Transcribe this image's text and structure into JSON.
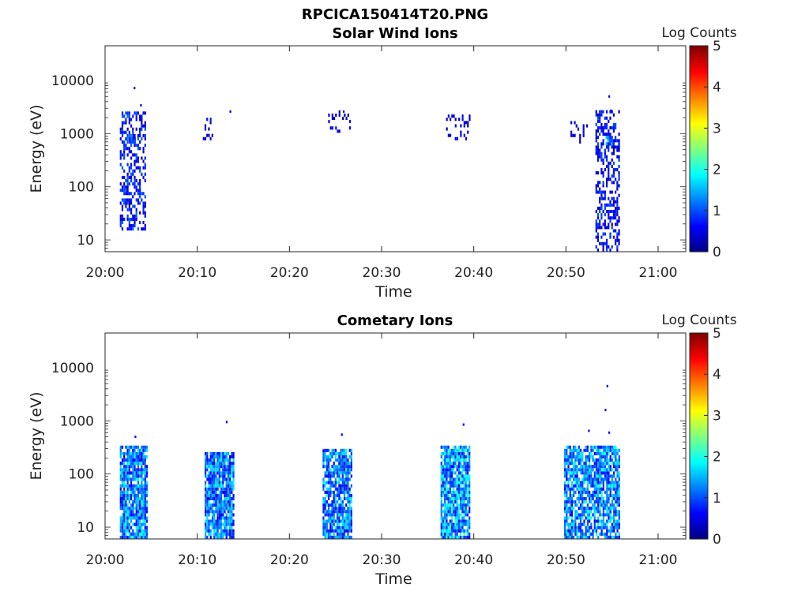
{
  "figure": {
    "title": "RPCICA150414T20.PNG"
  },
  "chart_data": [
    {
      "type": "heatmap",
      "title": "Solar Wind Ions",
      "xlabel": "Time",
      "ylabel": "Energy (eV)",
      "x_ticks": [
        "20:00",
        "20:10",
        "20:20",
        "20:30",
        "20:40",
        "20:50",
        "21:00"
      ],
      "x_range_minutes": [
        0,
        63
      ],
      "y_scale": "log",
      "y_range": [
        6,
        45000
      ],
      "y_ticks": [
        "10",
        "100",
        "1000",
        "10000"
      ],
      "colorbar": {
        "label": "Log Counts",
        "range": [
          0,
          5
        ],
        "ticks": [
          "0",
          "1",
          "2",
          "3",
          "4",
          "5"
        ],
        "colormap": "jet"
      },
      "grid": false,
      "clusters": [
        {
          "t0": 1.6,
          "t1": 4.4,
          "e0": 15,
          "e1": 2500,
          "density": 0.45,
          "vmax": 1.1
        },
        {
          "t0": 2.4,
          "t1": 3.2,
          "e0": 650,
          "e1": 950,
          "density": 0.8,
          "vmax": 1.6
        },
        {
          "t0": 10.6,
          "t1": 11.6,
          "e0": 750,
          "e1": 1900,
          "density": 0.3,
          "vmax": 0.7
        },
        {
          "t0": 24.2,
          "t1": 26.6,
          "e0": 900,
          "e1": 2600,
          "density": 0.2,
          "vmax": 0.7
        },
        {
          "t0": 36.8,
          "t1": 39.5,
          "e0": 750,
          "e1": 2000,
          "density": 0.2,
          "vmax": 0.7
        },
        {
          "t0": 50.3,
          "t1": 52.3,
          "e0": 650,
          "e1": 1700,
          "density": 0.25,
          "vmax": 0.7
        },
        {
          "t0": 53.2,
          "t1": 55.8,
          "e0": 6,
          "e1": 2500,
          "density": 0.45,
          "vmax": 1.0
        },
        {
          "t0": 54.3,
          "t1": 54.9,
          "e0": 600,
          "e1": 900,
          "density": 0.8,
          "vmax": 1.9
        }
      ],
      "points": [
        {
          "t": 3.1,
          "e": 7200,
          "v": 0.6
        },
        {
          "t": 3.8,
          "e": 3400,
          "v": 0.6
        },
        {
          "t": 13.5,
          "e": 2600,
          "v": 0.6
        },
        {
          "t": 25.8,
          "e": 2600,
          "v": 0.6
        },
        {
          "t": 54.6,
          "e": 5000,
          "v": 0.6
        },
        {
          "t": 54.8,
          "e": 2700,
          "v": 0.6
        }
      ]
    },
    {
      "type": "heatmap",
      "title": "Cometary Ions",
      "xlabel": "Time",
      "ylabel": "Energy (eV)",
      "x_ticks": [
        "20:00",
        "20:10",
        "20:20",
        "20:30",
        "20:40",
        "20:50",
        "21:00"
      ],
      "x_range_minutes": [
        0,
        63
      ],
      "y_scale": "log",
      "y_range": [
        6,
        45000
      ],
      "y_ticks": [
        "10",
        "100",
        "1000",
        "10000"
      ],
      "colorbar": {
        "label": "Log Counts",
        "range": [
          0,
          5
        ],
        "ticks": [
          "0",
          "1",
          "2",
          "3",
          "4",
          "5"
        ],
        "colormap": "jet"
      },
      "grid": false,
      "clusters": [
        {
          "t0": 1.6,
          "t1": 4.6,
          "e0": 6,
          "e1": 300,
          "density": 0.85,
          "vmax": 1.9
        },
        {
          "t0": 10.8,
          "t1": 14.0,
          "e0": 6,
          "e1": 250,
          "density": 0.85,
          "vmax": 1.9
        },
        {
          "t0": 23.6,
          "t1": 26.8,
          "e0": 6,
          "e1": 260,
          "density": 0.8,
          "vmax": 1.9
        },
        {
          "t0": 36.4,
          "t1": 39.6,
          "e0": 6,
          "e1": 300,
          "density": 0.9,
          "vmax": 2.2
        },
        {
          "t0": 49.8,
          "t1": 55.8,
          "e0": 6,
          "e1": 330,
          "density": 0.8,
          "vmax": 2.0
        }
      ],
      "points": [
        {
          "t": 3.2,
          "e": 500,
          "v": 0.6
        },
        {
          "t": 13.1,
          "e": 950,
          "v": 0.6
        },
        {
          "t": 23.6,
          "e": 270,
          "v": 0.6
        },
        {
          "t": 25.6,
          "e": 550,
          "v": 0.6
        },
        {
          "t": 38.8,
          "e": 850,
          "v": 0.6
        },
        {
          "t": 52.4,
          "e": 650,
          "v": 0.6
        },
        {
          "t": 54.4,
          "e": 4500,
          "v": 0.6
        },
        {
          "t": 54.2,
          "e": 1600,
          "v": 0.6
        },
        {
          "t": 54.6,
          "e": 600,
          "v": 0.6
        }
      ]
    }
  ]
}
